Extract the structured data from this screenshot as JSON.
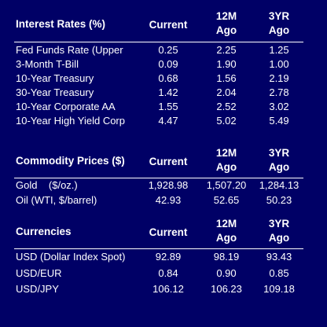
{
  "rates": {
    "title": "Interest Rates (%)",
    "columns": [
      "Current",
      "12M Ago",
      "3YR Ago"
    ],
    "rows": [
      {
        "name": "Fed Funds Rate (Upper",
        "current": "0.25",
        "m12": "2.25",
        "yr3": "1.25"
      },
      {
        "name": "3-Month T-Bill",
        "current": "0.09",
        "m12": "1.90",
        "yr3": "1.00"
      },
      {
        "name": "10-Year Treasury",
        "current": "0.68",
        "m12": "1.56",
        "yr3": "2.19"
      },
      {
        "name": "30-Year Treasury",
        "current": "1.42",
        "m12": "2.04",
        "yr3": "2.78"
      },
      {
        "name": "10-Year Corporate AA",
        "current": "1.55",
        "m12": "2.52",
        "yr3": "3.02"
      },
      {
        "name": "10-Year High Yield Corp",
        "current": "4.47",
        "m12": "5.02",
        "yr3": "5.49"
      }
    ]
  },
  "commodities": {
    "title": "Commodity Prices ($)",
    "columns": [
      "Current",
      "12M Ago",
      "3YR Ago"
    ],
    "rows": [
      {
        "name": "Gold    ($/oz.)",
        "current": "1,928.98",
        "m12": "1,507.20",
        "yr3": "1,284.13"
      },
      {
        "name": "Oil (WTI, $/barrel)",
        "current": "42.93",
        "m12": "52.65",
        "yr3": "50.23"
      }
    ]
  },
  "currencies": {
    "title": "Currencies",
    "columns": [
      "Current",
      "12M Ago",
      "3YR Ago"
    ],
    "rows": [
      {
        "name": "USD (Dollar Index Spot)",
        "current": "92.89",
        "m12": "98.19",
        "yr3": "93.43"
      },
      {
        "name": "USD/EUR",
        "current": "0.84",
        "m12": "0.90",
        "yr3": "0.85"
      },
      {
        "name": "USD/JPY",
        "current": "106.12",
        "m12": "106.23",
        "yr3": "109.18"
      }
    ]
  }
}
